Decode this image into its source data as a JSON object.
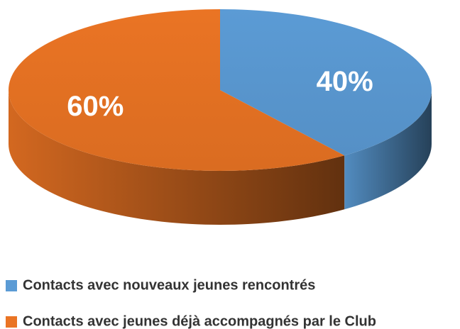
{
  "chart_data": {
    "type": "pie",
    "categories": [
      "Contacts avec nouveaux jeunes rencontrés",
      "Contacts avec jeunes déjà accompagnés par le Club"
    ],
    "values": [
      40,
      60
    ],
    "value_labels": [
      "40%",
      "60%"
    ],
    "colors": [
      "#5b9bd5",
      "#ea7424"
    ]
  }
}
